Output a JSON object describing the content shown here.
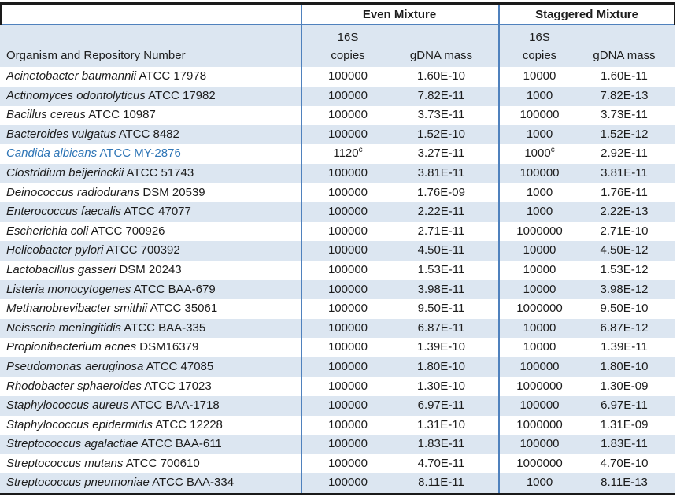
{
  "table": {
    "group_headers": {
      "even": "Even Mixture",
      "staggered": "Staggered Mixture"
    },
    "column_headers": {
      "organism": "Organism and Repository Number",
      "copies_line1": "16S",
      "copies_line2": "copies",
      "gdna": "gDNA mass"
    },
    "rows": [
      {
        "species": "Acinetobacter baumannii",
        "repo": "ATCC 17978",
        "even_copies": "100000",
        "even_gdna": "1.60E-10",
        "stag_copies": "10000",
        "stag_gdna": "1.60E-11"
      },
      {
        "species": "Actinomyces odontolyticus",
        "repo": "ATCC 17982",
        "even_copies": "100000",
        "even_gdna": "7.82E-11",
        "stag_copies": "1000",
        "stag_gdna": "7.82E-13"
      },
      {
        "species": "Bacillus cereus",
        "repo": "ATCC 10987",
        "even_copies": "100000",
        "even_gdna": "3.73E-11",
        "stag_copies": "100000",
        "stag_gdna": "3.73E-11"
      },
      {
        "species": "Bacteroides vulgatus",
        "repo": "ATCC 8482",
        "even_copies": "100000",
        "even_gdna": "1.52E-10",
        "stag_copies": "1000",
        "stag_gdna": "1.52E-12"
      },
      {
        "species": "Candida albicans",
        "repo": "ATCC MY-2876",
        "even_copies": "1120",
        "even_sup": "c",
        "even_gdna": "3.27E-11",
        "stag_copies": "1000",
        "stag_sup": "c",
        "stag_gdna": "2.92E-11",
        "highlight": true
      },
      {
        "species": "Clostridium beijerinckii",
        "repo": "ATCC 51743",
        "even_copies": "100000",
        "even_gdna": "3.81E-11",
        "stag_copies": "100000",
        "stag_gdna": "3.81E-11"
      },
      {
        "species": "Deinococcus radiodurans",
        "repo": "DSM 20539",
        "even_copies": "100000",
        "even_gdna": "1.76E-09",
        "stag_copies": "1000",
        "stag_gdna": "1.76E-11"
      },
      {
        "species": "Enterococcus faecalis",
        "repo": "ATCC 47077",
        "even_copies": "100000",
        "even_gdna": "2.22E-11",
        "stag_copies": "1000",
        "stag_gdna": "2.22E-13"
      },
      {
        "species": "Escherichia coli",
        "repo": "ATCC 700926",
        "even_copies": "100000",
        "even_gdna": "2.71E-11",
        "stag_copies": "1000000",
        "stag_gdna": "2.71E-10"
      },
      {
        "species": "Helicobacter pylori",
        "repo": "ATCC 700392",
        "even_copies": "100000",
        "even_gdna": "4.50E-11",
        "stag_copies": "10000",
        "stag_gdna": "4.50E-12"
      },
      {
        "species": "Lactobacillus gasseri",
        "repo": "DSM 20243",
        "even_copies": "100000",
        "even_gdna": "1.53E-11",
        "stag_copies": "10000",
        "stag_gdna": "1.53E-12"
      },
      {
        "species": "Listeria monocytogenes",
        "repo": "ATCC BAA-679",
        "even_copies": "100000",
        "even_gdna": "3.98E-11",
        "stag_copies": "10000",
        "stag_gdna": "3.98E-12"
      },
      {
        "species": "Methanobrevibacter smithii",
        "repo": "ATCC 35061",
        "even_copies": "100000",
        "even_gdna": "9.50E-11",
        "stag_copies": "1000000",
        "stag_gdna": "9.50E-10"
      },
      {
        "species": "Neisseria meningitidis",
        "repo": "ATCC BAA-335",
        "even_copies": "100000",
        "even_gdna": "6.87E-11",
        "stag_copies": "10000",
        "stag_gdna": "6.87E-12"
      },
      {
        "species": "Propionibacterium acnes",
        "repo": "DSM16379",
        "even_copies": "100000",
        "even_gdna": "1.39E-10",
        "stag_copies": "10000",
        "stag_gdna": "1.39E-11"
      },
      {
        "species": "Pseudomonas aeruginosa",
        "repo": "ATCC 47085",
        "even_copies": "100000",
        "even_gdna": "1.80E-10",
        "stag_copies": "100000",
        "stag_gdna": "1.80E-10"
      },
      {
        "species": "Rhodobacter sphaeroides",
        "repo": "ATCC 17023",
        "even_copies": "100000",
        "even_gdna": "1.30E-10",
        "stag_copies": "1000000",
        "stag_gdna": "1.30E-09"
      },
      {
        "species": "Staphylococcus aureus",
        "repo": "ATCC BAA-1718",
        "even_copies": "100000",
        "even_gdna": "6.97E-11",
        "stag_copies": "100000",
        "stag_gdna": "6.97E-11"
      },
      {
        "species": "Staphylococcus epidermidis",
        "repo": "ATCC 12228",
        "even_copies": "100000",
        "even_gdna": "1.31E-10",
        "stag_copies": "1000000",
        "stag_gdna": "1.31E-09"
      },
      {
        "species": "Streptococcus agalactiae",
        "repo": "ATCC BAA-611",
        "even_copies": "100000",
        "even_gdna": "1.83E-11",
        "stag_copies": "100000",
        "stag_gdna": "1.83E-11"
      },
      {
        "species": "Streptococcus mutans",
        "repo": "ATCC 700610",
        "even_copies": "100000",
        "even_gdna": "4.70E-11",
        "stag_copies": "1000000",
        "stag_gdna": "4.70E-10"
      },
      {
        "species": "Streptococcus pneumoniae",
        "repo": "ATCC BAA-334",
        "even_copies": "100000",
        "even_gdna": "8.11E-11",
        "stag_copies": "1000",
        "stag_gdna": "8.11E-13"
      }
    ]
  },
  "colors": {
    "stripe": "#dce6f1",
    "header_band": "#dce6f1",
    "rule_blue": "#4f81bd",
    "rule_dark": "#1a1a1a",
    "highlight_text": "#2e75b6",
    "text": "#1c1c1c"
  }
}
